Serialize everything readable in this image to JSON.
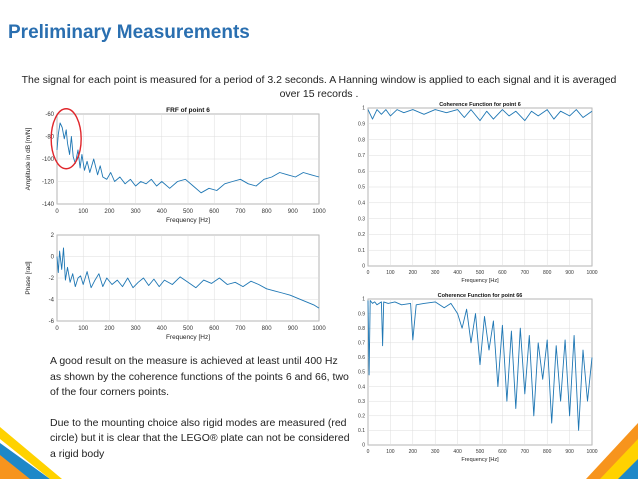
{
  "slide": {
    "title": "Preliminary Measurements",
    "intro": "The signal for each point is measured for a period of 3.2 seconds. A Hanning window is applied to each signal and it is averaged over 15 records .",
    "note_1": "A good result on the measure is achieved at least until 400 Hz as shown by the coherence functions of the points 6 and 66, two of the four corners points.",
    "note_2": "Due to the mounting choice also rigid modes are measured (red circle) but it is clear that the LEGO® plate can not be considered a rigid body",
    "colors": {
      "title": "#2a6fb0",
      "line": "#1f77b4",
      "highlight": "#e0262b",
      "deco_orange": "#f7941d",
      "deco_yellow": "#ffd200",
      "deco_blue": "#1e88c8"
    }
  },
  "chart_data": [
    {
      "id": "frf-magnitude",
      "type": "line",
      "title": "FRF of point 6",
      "xlabel": "Frequency [Hz]",
      "ylabel": "Amplitude in dB [m/N]",
      "xlim": [
        0,
        1000
      ],
      "ylim": [
        -140,
        -60
      ],
      "xticks": [
        0,
        100,
        200,
        300,
        400,
        500,
        600,
        700,
        800,
        900,
        1000
      ],
      "yticks": [
        -140,
        -120,
        -100,
        -80,
        -60
      ],
      "ytick_labels": [
        "-140",
        "-120",
        "-100",
        "-80",
        "-60"
      ],
      "grid": true,
      "annotation": "red circle around low-frequency peaks (rigid modes)",
      "series": [
        {
          "x": [
            0,
            5,
            12,
            20,
            28,
            35,
            40,
            48,
            55,
            62,
            70,
            80,
            88,
            95,
            105,
            115,
            125,
            140,
            155,
            165,
            175,
            190,
            205,
            220,
            240,
            260,
            280,
            300,
            320,
            340,
            360,
            380,
            400,
            430,
            460,
            490,
            520,
            550,
            580,
            610,
            640,
            670,
            700,
            730,
            760,
            790,
            820,
            850,
            880,
            910,
            940,
            970,
            1000
          ],
          "y": [
            -92,
            -78,
            -68,
            -72,
            -82,
            -74,
            -86,
            -96,
            -80,
            -98,
            -104,
            -92,
            -108,
            -96,
            -110,
            -102,
            -112,
            -100,
            -114,
            -106,
            -116,
            -118,
            -112,
            -120,
            -116,
            -122,
            -118,
            -124,
            -120,
            -122,
            -118,
            -124,
            -120,
            -126,
            -120,
            -118,
            -124,
            -130,
            -126,
            -128,
            -122,
            -120,
            -118,
            -122,
            -124,
            -118,
            -116,
            -112,
            -114,
            -116,
            -112,
            -114,
            -116
          ]
        }
      ]
    },
    {
      "id": "frf-phase",
      "type": "line",
      "title": "",
      "xlabel": "Frequency [Hz]",
      "ylabel": "Phase [rad]",
      "xlim": [
        0,
        1000
      ],
      "ylim": [
        -6,
        2
      ],
      "xticks": [
        0,
        100,
        200,
        300,
        400,
        500,
        600,
        700,
        800,
        900,
        1000
      ],
      "yticks": [
        -6,
        -4,
        -2,
        0,
        2
      ],
      "ytick_labels": [
        "-6",
        "-4",
        "-2",
        "0",
        "2"
      ],
      "grid": true,
      "series": [
        {
          "x": [
            0,
            5,
            10,
            18,
            25,
            32,
            40,
            50,
            60,
            70,
            80,
            90,
            100,
            115,
            130,
            145,
            160,
            175,
            190,
            210,
            230,
            250,
            270,
            290,
            310,
            330,
            350,
            370,
            390,
            410,
            440,
            470,
            500,
            530,
            560,
            590,
            620,
            650,
            680,
            710,
            740,
            770,
            800,
            830,
            860,
            890,
            920,
            950,
            980,
            1000
          ],
          "y": [
            0,
            -1.5,
            0.5,
            -1.2,
            0.8,
            -2.2,
            -1.0,
            -2.4,
            -1.6,
            -2.8,
            -2.0,
            -1.8,
            -2.6,
            -1.4,
            -2.9,
            -2.2,
            -1.6,
            -2.8,
            -2.0,
            -2.6,
            -2.2,
            -2.8,
            -2.0,
            -2.9,
            -2.4,
            -2.0,
            -2.7,
            -2.1,
            -2.8,
            -2.2,
            -2.6,
            -1.9,
            -2.4,
            -2.9,
            -2.2,
            -2.5,
            -2.0,
            -2.6,
            -2.4,
            -2.8,
            -2.3,
            -2.6,
            -3.0,
            -3.2,
            -3.4,
            -3.6,
            -3.9,
            -4.2,
            -4.5,
            -4.8
          ]
        }
      ]
    },
    {
      "id": "coherence-6",
      "type": "line",
      "title": "Coherence Function for point 6",
      "xlabel": "Frequency [Hz]",
      "ylabel": "",
      "xlim": [
        0,
        1000
      ],
      "ylim": [
        0,
        1
      ],
      "xticks": [
        0,
        100,
        200,
        300,
        400,
        500,
        600,
        700,
        800,
        900,
        1000
      ],
      "yticks": [
        0,
        0.1,
        0.2,
        0.3,
        0.4,
        0.5,
        0.6,
        0.7,
        0.8,
        0.9,
        1
      ],
      "ytick_labels": [
        "0",
        "0.1",
        "0.2",
        "0.3",
        "0.4",
        "0.5",
        "0.6",
        "0.7",
        "0.8",
        "0.9",
        "1"
      ],
      "grid": true,
      "series": [
        {
          "x": [
            0,
            20,
            40,
            60,
            80,
            100,
            130,
            160,
            200,
            250,
            300,
            350,
            400,
            430,
            460,
            500,
            530,
            560,
            600,
            630,
            660,
            700,
            730,
            760,
            800,
            830,
            860,
            900,
            930,
            960,
            1000
          ],
          "y": [
            0.99,
            0.93,
            0.99,
            0.96,
            0.99,
            0.95,
            0.99,
            0.97,
            0.99,
            0.96,
            0.99,
            0.97,
            0.99,
            0.94,
            0.99,
            0.92,
            0.98,
            0.93,
            0.99,
            0.95,
            0.98,
            0.92,
            0.98,
            0.95,
            0.99,
            0.93,
            0.98,
            0.95,
            0.99,
            0.94,
            0.98
          ]
        }
      ]
    },
    {
      "id": "coherence-66",
      "type": "line",
      "title": "Coherence Function for point 66",
      "xlabel": "Frequency [Hz]",
      "ylabel": "",
      "xlim": [
        0,
        1000
      ],
      "ylim": [
        0,
        1
      ],
      "xticks": [
        0,
        100,
        200,
        300,
        400,
        500,
        600,
        700,
        800,
        900,
        1000
      ],
      "yticks": [
        0,
        0.1,
        0.2,
        0.3,
        0.4,
        0.5,
        0.6,
        0.7,
        0.8,
        0.9,
        1
      ],
      "ytick_labels": [
        "0",
        "0.1",
        "0.2",
        "0.3",
        "0.4",
        "0.5",
        "0.6",
        "0.7",
        "0.8",
        "0.9",
        "1"
      ],
      "grid": true,
      "series": [
        {
          "x": [
            0,
            5,
            10,
            20,
            30,
            40,
            60,
            65,
            70,
            90,
            120,
            150,
            190,
            200,
            215,
            250,
            300,
            340,
            370,
            400,
            420,
            440,
            460,
            480,
            500,
            520,
            540,
            560,
            580,
            600,
            620,
            640,
            660,
            680,
            700,
            720,
            740,
            760,
            780,
            800,
            820,
            840,
            860,
            880,
            900,
            920,
            940,
            960,
            980,
            1000
          ],
          "y": [
            0.99,
            0.48,
            0.99,
            0.97,
            0.98,
            0.96,
            0.98,
            0.68,
            0.98,
            0.97,
            0.98,
            0.96,
            0.97,
            0.72,
            0.96,
            0.97,
            0.98,
            0.94,
            0.97,
            0.9,
            0.8,
            0.93,
            0.7,
            0.9,
            0.55,
            0.88,
            0.65,
            0.85,
            0.4,
            0.82,
            0.3,
            0.78,
            0.25,
            0.8,
            0.35,
            0.75,
            0.2,
            0.7,
            0.45,
            0.72,
            0.15,
            0.68,
            0.3,
            0.72,
            0.2,
            0.75,
            0.1,
            0.65,
            0.3,
            0.6
          ]
        }
      ]
    }
  ]
}
